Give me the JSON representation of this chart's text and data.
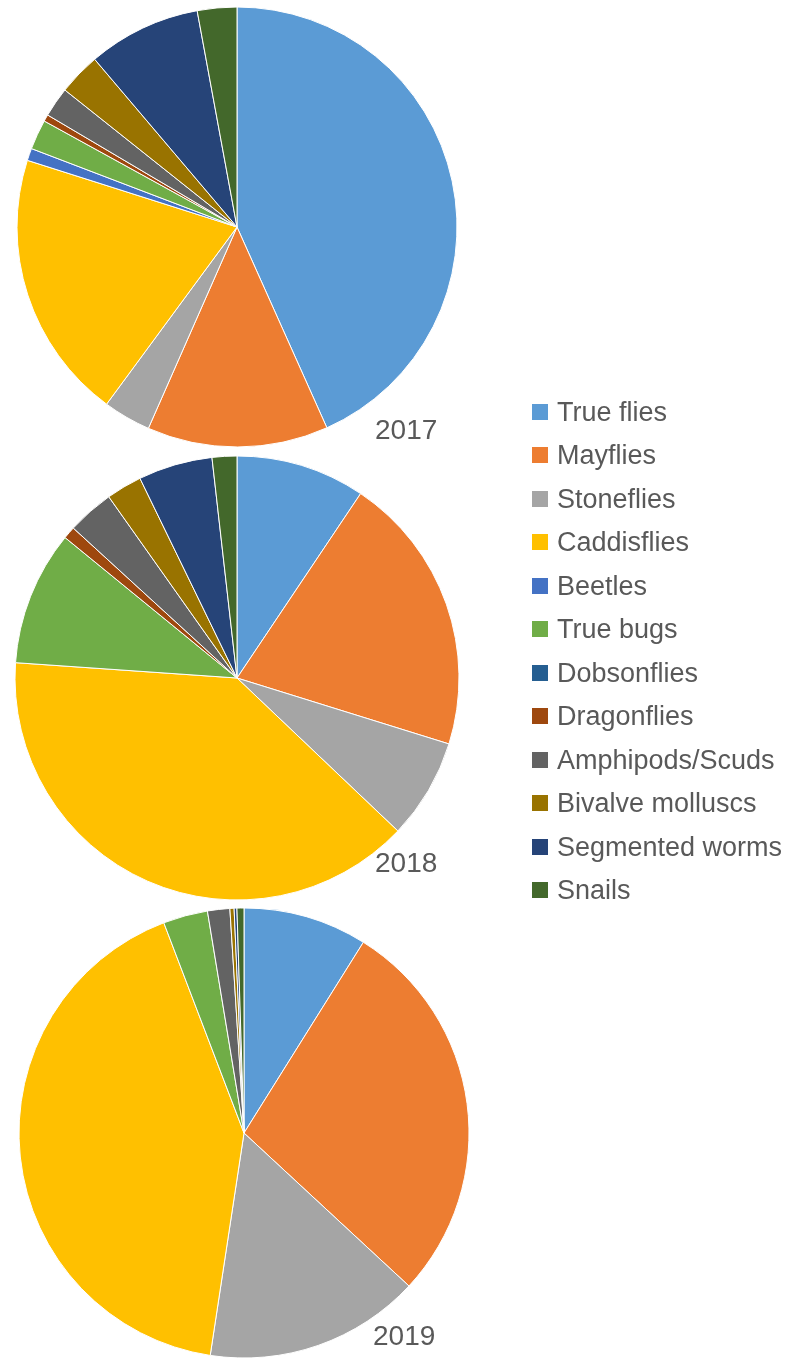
{
  "chart_data": {
    "type": "pie",
    "categories": [
      "True flies",
      "Mayflies",
      "Stoneflies",
      "Caddisflies",
      "Beetles",
      "True bugs",
      "Dobsonflies",
      "Dragonflies",
      "Amphipods/Scuds",
      "Bivalve molluscs",
      "Segmented worms",
      "Snails"
    ],
    "colors": [
      "#5b9bd5",
      "#ed7d31",
      "#a5a5a5",
      "#ffc000",
      "#4472c4",
      "#70ad47",
      "#255e91",
      "#9e480e",
      "#636363",
      "#997300",
      "#264478",
      "#43682b"
    ],
    "series": [
      {
        "name": "2017",
        "values": [
          43.3,
          13.3,
          3.5,
          19.8,
          0.9,
          2.2,
          0,
          0.5,
          2.2,
          3.1,
          8.3,
          2.9
        ]
      },
      {
        "name": "2018",
        "values": [
          9.4,
          20.4,
          7.3,
          39.0,
          0,
          9.8,
          0,
          0.9,
          3.4,
          2.6,
          5.4,
          1.8
        ]
      },
      {
        "name": "2019",
        "values": [
          8.9,
          28.0,
          15.5,
          41.8,
          0,
          3.2,
          0,
          0,
          1.6,
          0.3,
          0.2,
          0.5
        ]
      }
    ],
    "legend": "right"
  }
}
